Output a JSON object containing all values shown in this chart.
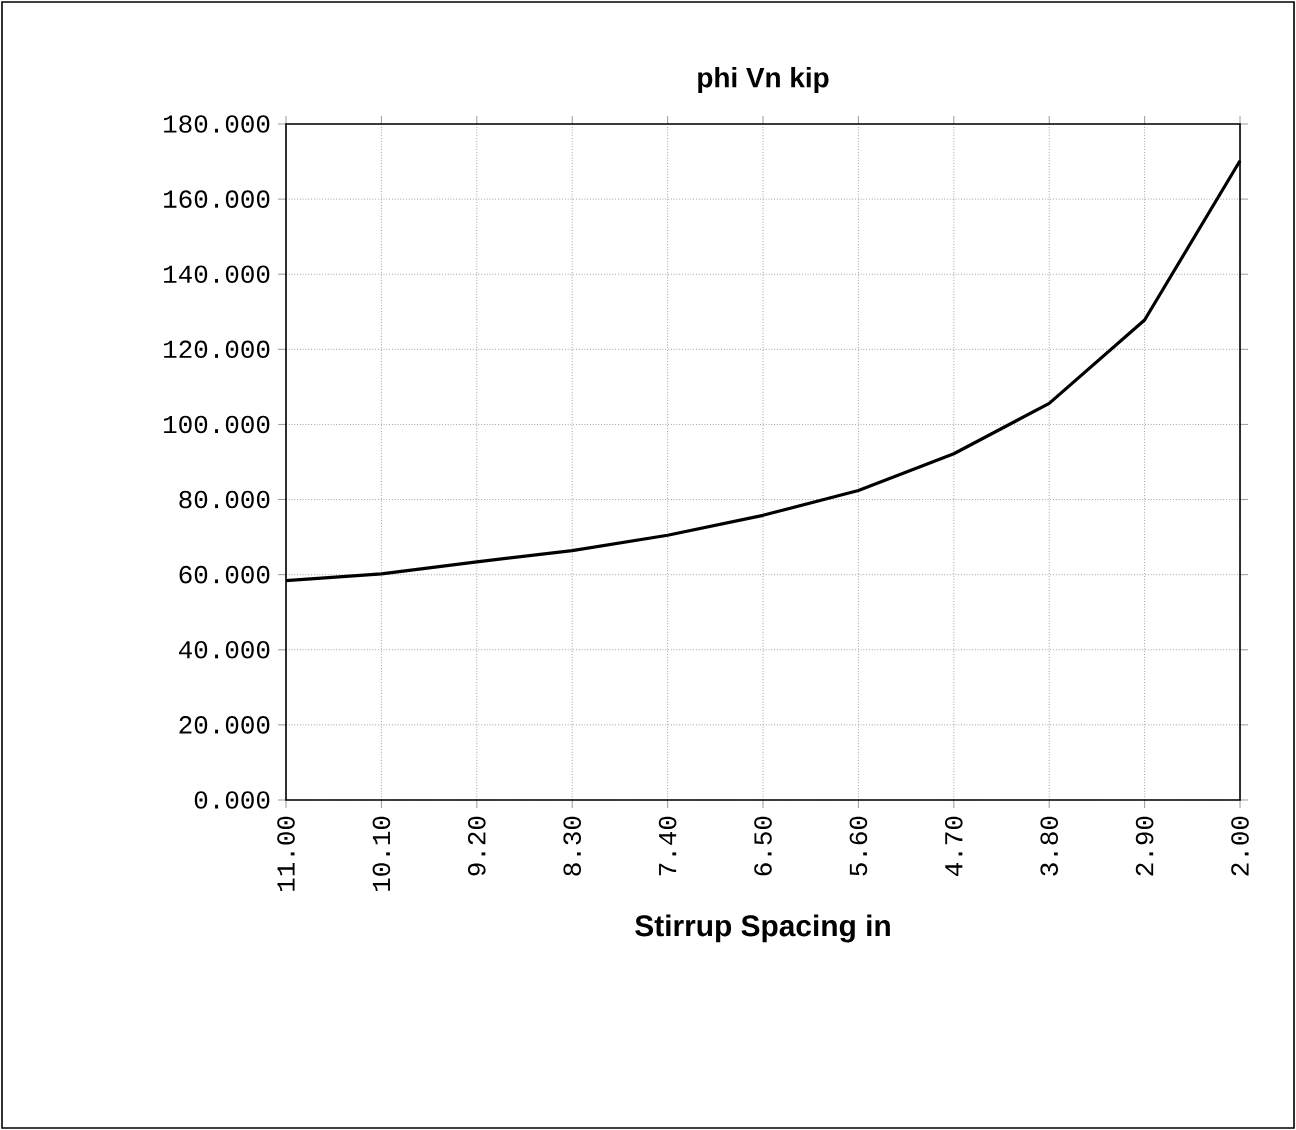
{
  "chart_data": {
    "type": "line",
    "title": "phi Vn   kip",
    "xlabel": "Stirrup Spacing   in",
    "categories": [
      "11.00",
      "10.10",
      "9.20",
      "8.30",
      "7.40",
      "6.50",
      "5.60",
      "4.70",
      "3.80",
      "2.90",
      "2.00"
    ],
    "series": [
      {
        "color": "#000000",
        "values": [
          58.4,
          60.2,
          63.4,
          66.4,
          70.5,
          75.8,
          82.4,
          92.2,
          105.6,
          127.8,
          170.2
        ]
      }
    ],
    "ylim": [
      0,
      180
    ],
    "yticks": [
      {
        "value": 0,
        "label": "0.000"
      },
      {
        "value": 20,
        "label": "20.000"
      },
      {
        "value": 40,
        "label": "40.000"
      },
      {
        "value": 60,
        "label": "60.000"
      },
      {
        "value": 80,
        "label": "80.000"
      },
      {
        "value": 100,
        "label": "100.000"
      },
      {
        "value": 120,
        "label": "120.000"
      },
      {
        "value": 140,
        "label": "140.000"
      },
      {
        "value": 160,
        "label": "160.000"
      },
      {
        "value": 180,
        "label": "180.000"
      }
    ],
    "grid": true,
    "marker": "none",
    "line_style": "solid"
  }
}
